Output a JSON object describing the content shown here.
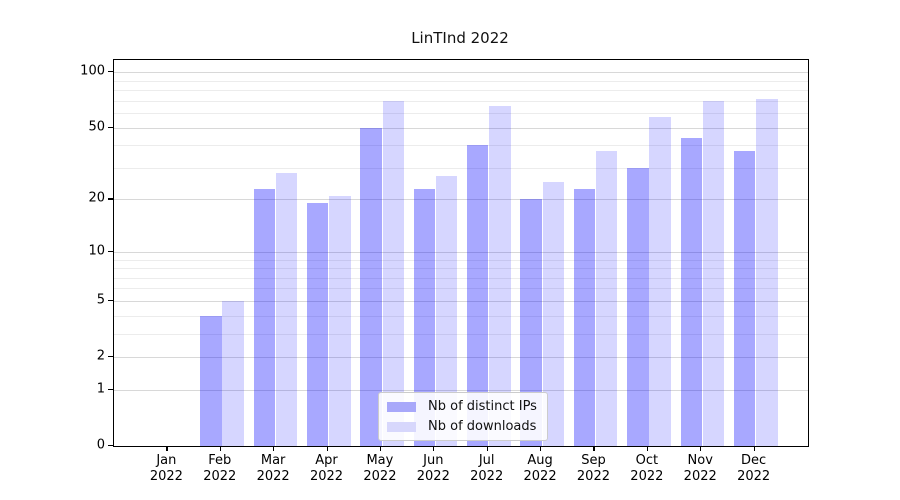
{
  "title": "LinTInd 2022",
  "chart_data": {
    "type": "bar",
    "scale": "log10(1+y)",
    "grid": true,
    "categories": [
      "Jan",
      "Feb",
      "Mar",
      "Apr",
      "May",
      "Jun",
      "Jul",
      "Aug",
      "Sep",
      "Oct",
      "Nov",
      "Dec"
    ],
    "year_label": "2022",
    "series": [
      {
        "name": "Nb of distinct IPs",
        "color": "rgba(0,0,255,0.34)",
        "legend_color": "#a8a8fa",
        "values": [
          0,
          4,
          23,
          19,
          50,
          23,
          40,
          20,
          23,
          30,
          44,
          37
        ]
      },
      {
        "name": "Nb of downloads",
        "color": "rgba(0,0,255,0.16)",
        "legend_color": "#d7d7fc",
        "values": [
          0,
          5,
          28,
          21,
          70,
          27,
          66,
          25,
          37,
          57,
          70,
          72
        ]
      }
    ],
    "yticks": [
      0,
      1,
      2,
      5,
      10,
      20,
      50,
      100
    ],
    "minor_grid_values": [
      3,
      4,
      6,
      7,
      8,
      9,
      30,
      40,
      60,
      70,
      80,
      90
    ],
    "ylim": [
      0,
      117
    ],
    "legend_position": "lower center",
    "xlabel": "",
    "ylabel": ""
  }
}
